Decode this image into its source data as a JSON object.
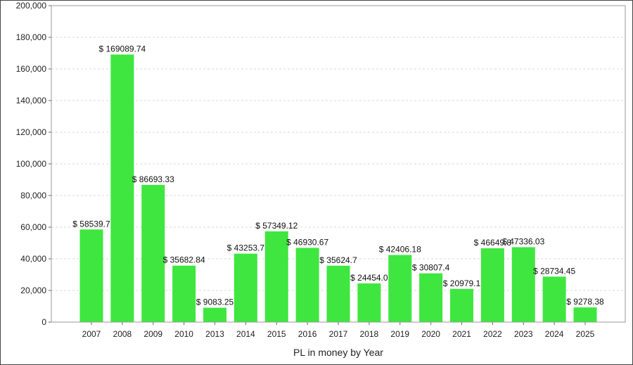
{
  "chart_data": {
    "type": "bar",
    "categories": [
      "2007",
      "2008",
      "2009",
      "2010",
      "2013",
      "2014",
      "2015",
      "2016",
      "2017",
      "2018",
      "2019",
      "2020",
      "2021",
      "2022",
      "2023",
      "2024",
      "2025"
    ],
    "values": [
      58539.7,
      169089.74,
      86693.33,
      35682.84,
      9083.25,
      43253.7,
      57349.12,
      46930.67,
      35624.7,
      24454.0,
      42406.18,
      30807.4,
      20979.1,
      46649.8,
      47336.03,
      28734.45,
      9278.38
    ],
    "data_labels": [
      "$ 58539.7",
      "$ 169089.74",
      "$ 86693.33",
      "$ 35682.84",
      "$ 9083.25",
      "$ 43253.7",
      "$ 57349.12",
      "$ 46930.67",
      "$ 35624.7",
      "$ 24454.0",
      "$ 42406.18",
      "$ 30807.4",
      "$ 20979.1",
      "$ 46649.8",
      "$ 47336.03",
      "$ 28734.45",
      "$ 9278.38"
    ],
    "title": "",
    "xlabel": "PL in money by Year",
    "ylabel": "",
    "ylim": [
      0,
      200000
    ],
    "yticks": [
      0,
      20000,
      40000,
      60000,
      80000,
      100000,
      120000,
      140000,
      160000,
      180000,
      200000
    ],
    "ytick_labels": [
      "0",
      "20,000",
      "40,000",
      "60,000",
      "80,000",
      "100,000",
      "120,000",
      "140,000",
      "160,000",
      "180,000",
      "200,000"
    ],
    "grid": true,
    "bar_color": "#3fe63f",
    "grid_color": "#d9d9d9"
  }
}
